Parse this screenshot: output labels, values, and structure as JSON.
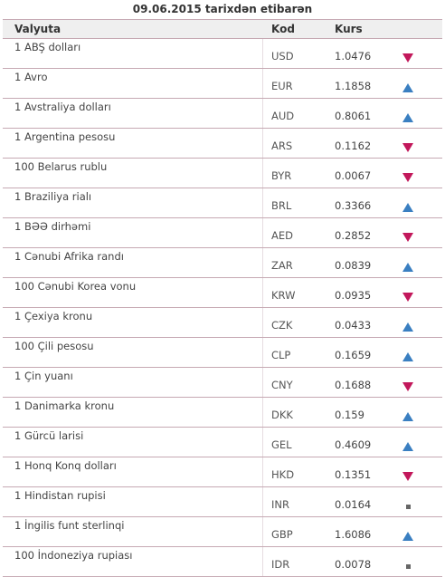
{
  "header": {
    "title": "09.06.2015 tarixdən etibarən"
  },
  "columns": {
    "name": "Valyuta",
    "code": "Kod",
    "rate": "Kurs"
  },
  "colors": {
    "up": "#3a7fc1",
    "down": "#c2185b",
    "border": "#c6a9b3",
    "neutral": "#666666"
  },
  "rows": [
    {
      "name": "1 ABŞ dolları",
      "code": "USD",
      "rate": "1.0476",
      "trend": "down"
    },
    {
      "name": "1 Avro",
      "code": "EUR",
      "rate": "1.1858",
      "trend": "up"
    },
    {
      "name": "1 Avstraliya dolları",
      "code": "AUD",
      "rate": "0.8061",
      "trend": "up"
    },
    {
      "name": "1 Argentina pesosu",
      "code": "ARS",
      "rate": "0.1162",
      "trend": "down"
    },
    {
      "name": "100 Belarus rublu",
      "code": "BYR",
      "rate": "0.0067",
      "trend": "down"
    },
    {
      "name": "1 Braziliya rialı",
      "code": "BRL",
      "rate": "0.3366",
      "trend": "up"
    },
    {
      "name": "1 BƏƏ dirhəmi",
      "code": "AED",
      "rate": "0.2852",
      "trend": "down"
    },
    {
      "name": "1 Cənubi Afrika randı",
      "code": "ZAR",
      "rate": "0.0839",
      "trend": "up"
    },
    {
      "name": "100 Cənubi Korea vonu",
      "code": "KRW",
      "rate": "0.0935",
      "trend": "down"
    },
    {
      "name": "1 Çexiya kronu",
      "code": "CZK",
      "rate": "0.0433",
      "trend": "up"
    },
    {
      "name": "100 Çili pesosu",
      "code": "CLP",
      "rate": "0.1659",
      "trend": "up"
    },
    {
      "name": "1 Çin yuanı",
      "code": "CNY",
      "rate": "0.1688",
      "trend": "down"
    },
    {
      "name": "1 Danimarka kronu",
      "code": "DKK",
      "rate": "0.159",
      "trend": "up"
    },
    {
      "name": "1 Gürcü larisi",
      "code": "GEL",
      "rate": "0.4609",
      "trend": "up"
    },
    {
      "name": "1 Honq Konq dolları",
      "code": "HKD",
      "rate": "0.1351",
      "trend": "down"
    },
    {
      "name": "1 Hindistan rupisi",
      "code": "INR",
      "rate": "0.0164",
      "trend": "flat"
    },
    {
      "name": "1 İngilis funt sterlinqi",
      "code": "GBP",
      "rate": "1.6086",
      "trend": "up"
    },
    {
      "name": "100 İndoneziya rupiası",
      "code": "IDR",
      "rate": "0.0078",
      "trend": "flat"
    }
  ]
}
